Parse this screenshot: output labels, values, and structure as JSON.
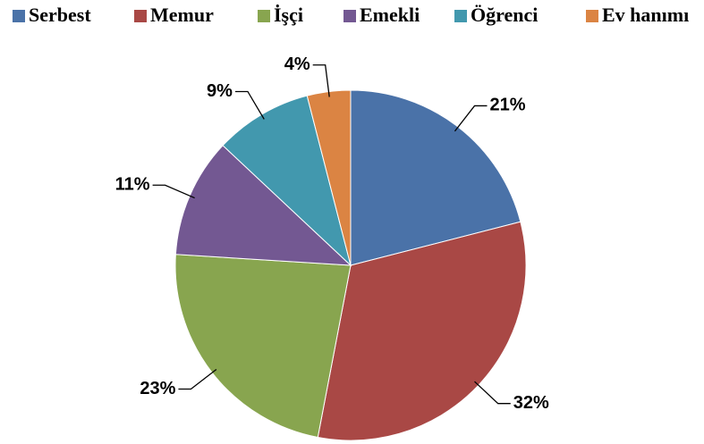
{
  "chart_data": {
    "type": "pie",
    "categories": [
      "Serbest",
      "Memur",
      "İşçi",
      "Emekli",
      "Öğrenci",
      "Ev hanımı"
    ],
    "values": [
      21,
      32,
      23,
      11,
      9,
      4
    ],
    "value_labels": [
      "21%",
      "32%",
      "23%",
      "11%",
      "9%",
      "4%"
    ],
    "colors": [
      "#4a72a8",
      "#a94845",
      "#88a54f",
      "#735892",
      "#4298ae",
      "#db8443"
    ],
    "legend": "top"
  }
}
